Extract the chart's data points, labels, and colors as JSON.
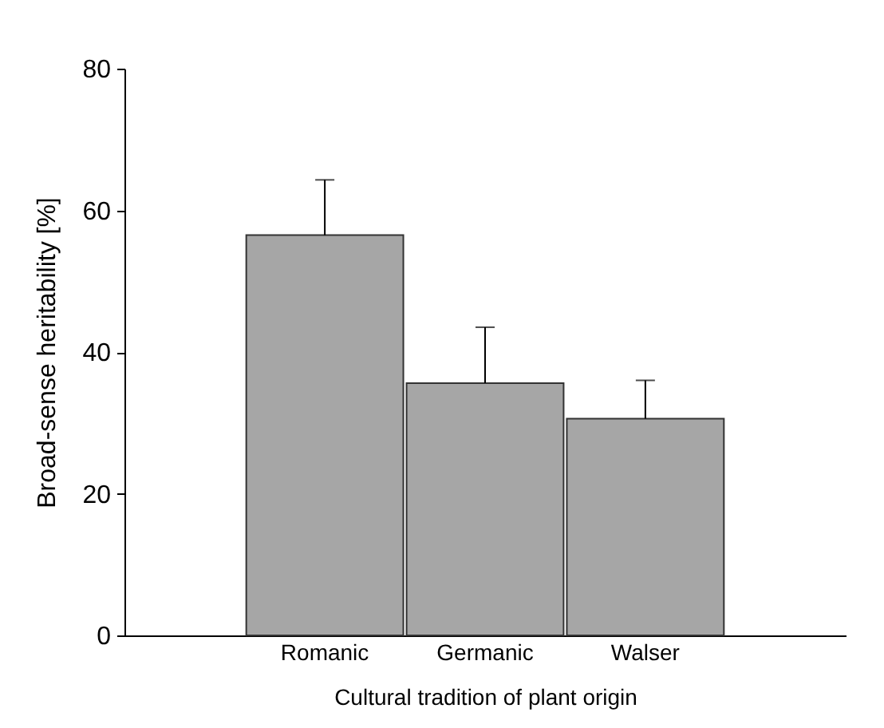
{
  "chart_data": {
    "type": "bar",
    "xlabel": "Cultural tradition of plant origin",
    "ylabel": "Broad-sense heritability  [%]",
    "categories": [
      "Romanic",
      "Germanic",
      "Walser"
    ],
    "values": [
      56.5,
      35.6,
      30.6
    ],
    "color": "#a6a6a6",
    "errors": [
      [
        56.5,
        64.3
      ],
      [
        35.6,
        43.5
      ],
      [
        30.6,
        36.0
      ]
    ],
    "ylim": [
      0,
      80
    ],
    "yticks": [
      0,
      20,
      40,
      60,
      80
    ],
    "grid": false
  }
}
